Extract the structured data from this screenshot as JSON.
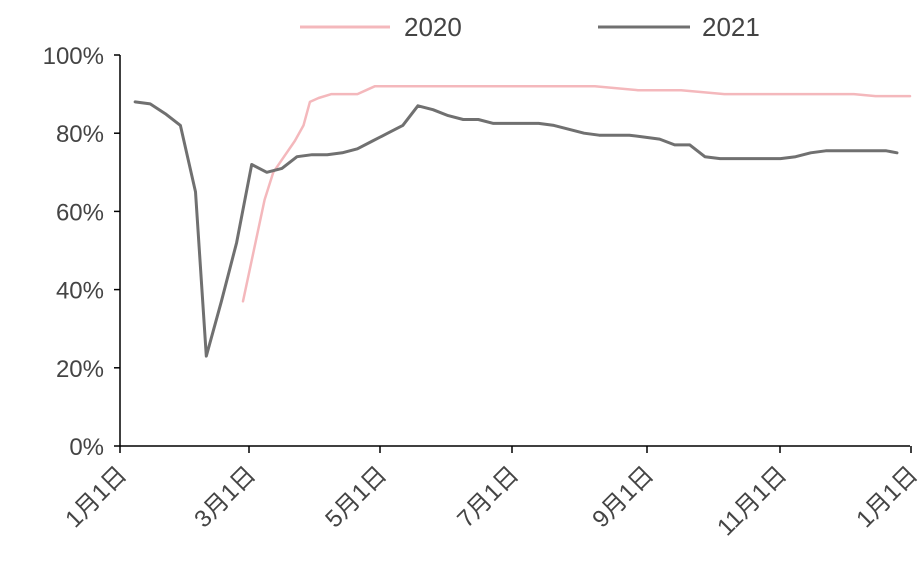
{
  "chart_data": {
    "type": "line",
    "title": "",
    "xlabel": "",
    "ylabel": "",
    "ylim": [
      0,
      100
    ],
    "y_ticks": [
      "0%",
      "20%",
      "40%",
      "60%",
      "80%",
      "100%"
    ],
    "x_ticks": [
      "1月1日",
      "3月1日",
      "5月1日",
      "7月1日",
      "9月1日",
      "11月1日",
      "1月1日"
    ],
    "xlim_days": [
      0,
      366
    ],
    "grid": false,
    "legend_position": "top",
    "series": [
      {
        "name": "2020",
        "color": "#f4b8bc",
        "points": [
          [
            57,
            37
          ],
          [
            62,
            50
          ],
          [
            67,
            63
          ],
          [
            71,
            70
          ],
          [
            76,
            74
          ],
          [
            81,
            78
          ],
          [
            85,
            82
          ],
          [
            88,
            88
          ],
          [
            92,
            89
          ],
          [
            98,
            90
          ],
          [
            103,
            90
          ],
          [
            110,
            90
          ],
          [
            114,
            91
          ],
          [
            118,
            92
          ],
          [
            130,
            92
          ],
          [
            150,
            92
          ],
          [
            170,
            92
          ],
          [
            190,
            92
          ],
          [
            200,
            92
          ],
          [
            220,
            92
          ],
          [
            240,
            91
          ],
          [
            260,
            91
          ],
          [
            280,
            90
          ],
          [
            300,
            90
          ],
          [
            320,
            90
          ],
          [
            340,
            90
          ],
          [
            350,
            89.5
          ],
          [
            366,
            89.5
          ]
        ]
      },
      {
        "name": "2021",
        "color": "#707070",
        "points": [
          [
            7,
            88
          ],
          [
            14,
            87.5
          ],
          [
            21,
            85
          ],
          [
            28,
            82
          ],
          [
            35,
            65
          ],
          [
            40,
            23
          ],
          [
            47,
            37
          ],
          [
            54,
            52
          ],
          [
            61,
            72
          ],
          [
            68,
            70
          ],
          [
            75,
            71
          ],
          [
            82,
            74
          ],
          [
            89,
            74.5
          ],
          [
            96,
            74.5
          ],
          [
            103,
            75
          ],
          [
            110,
            76
          ],
          [
            117,
            78
          ],
          [
            124,
            80
          ],
          [
            131,
            82
          ],
          [
            138,
            87
          ],
          [
            145,
            86
          ],
          [
            152,
            84.5
          ],
          [
            159,
            83.5
          ],
          [
            166,
            83.5
          ],
          [
            173,
            82.5
          ],
          [
            180,
            82.5
          ],
          [
            187,
            82.5
          ],
          [
            194,
            82.5
          ],
          [
            201,
            82
          ],
          [
            208,
            81
          ],
          [
            215,
            80
          ],
          [
            222,
            79.5
          ],
          [
            229,
            79.5
          ],
          [
            236,
            79.5
          ],
          [
            243,
            79
          ],
          [
            250,
            78.5
          ],
          [
            257,
            77
          ],
          [
            264,
            77
          ],
          [
            271,
            74
          ],
          [
            278,
            73.5
          ],
          [
            285,
            73.5
          ],
          [
            292,
            73.5
          ],
          [
            299,
            73.5
          ],
          [
            306,
            73.5
          ],
          [
            313,
            74
          ],
          [
            320,
            75
          ],
          [
            327,
            75.5
          ],
          [
            334,
            75.5
          ],
          [
            341,
            75.5
          ],
          [
            348,
            75.5
          ],
          [
            355,
            75.5
          ],
          [
            360,
            75
          ]
        ]
      }
    ]
  }
}
